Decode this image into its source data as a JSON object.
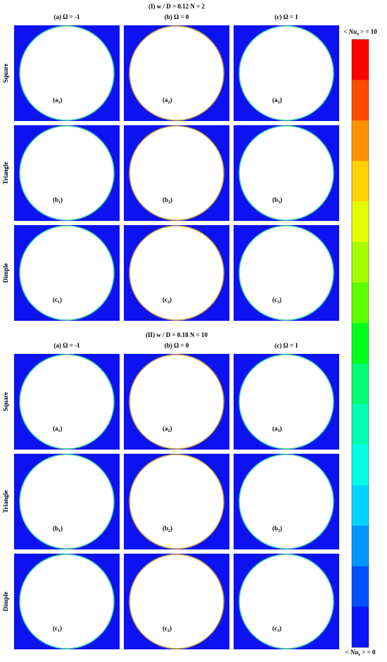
{
  "sections": [
    {
      "title": "(I)  w / D = 0.12    N = 2",
      "columns": [
        "(a) Ω = -1",
        "(b) Ω = 0",
        "(c) Ω = 1"
      ],
      "rows": [
        {
          "label": "Square",
          "panels": [
            {
              "letter": "a",
              "sub": "1"
            },
            {
              "letter": "a",
              "sub": "2"
            },
            {
              "letter": "a",
              "sub": "3"
            }
          ]
        },
        {
          "label": "Triangle",
          "panels": [
            {
              "letter": "b",
              "sub": "1"
            },
            {
              "letter": "b",
              "sub": "2"
            },
            {
              "letter": "b",
              "sub": "3"
            }
          ]
        },
        {
          "label": "Dimple",
          "panels": [
            {
              "letter": "c",
              "sub": "1"
            },
            {
              "letter": "c",
              "sub": "2"
            },
            {
              "letter": "c",
              "sub": "3"
            }
          ]
        }
      ]
    },
    {
      "title": "(II)  w / D = 0.18   N = 10",
      "columns": [
        "(a) Ω = -1",
        "(b) Ω = 0",
        "(c) Ω = 1"
      ],
      "rows": [
        {
          "label": "Square",
          "panels": [
            {
              "letter": "a",
              "sub": "1"
            },
            {
              "letter": "a",
              "sub": "2"
            },
            {
              "letter": "a",
              "sub": "3"
            }
          ]
        },
        {
          "label": "Triangle",
          "panels": [
            {
              "letter": "b",
              "sub": "1"
            },
            {
              "letter": "b",
              "sub": "2"
            },
            {
              "letter": "b",
              "sub": "3"
            }
          ]
        },
        {
          "label": "Dimple",
          "panels": [
            {
              "letter": "c",
              "sub": "1"
            },
            {
              "letter": "c",
              "sub": "2"
            },
            {
              "letter": "c",
              "sub": "3"
            }
          ]
        }
      ]
    }
  ],
  "colorbar": {
    "max_label": {
      "prefix": "< Nu",
      "sub": "z",
      "suffix": " > = 10"
    },
    "min_label": {
      "prefix": "< Nu",
      "sub": "z",
      "suffix": " > = 0"
    },
    "colors": [
      "#ff0000",
      "#ff4a00",
      "#ff9100",
      "#ffd200",
      "#e5ff00",
      "#a6ff00",
      "#5cff00",
      "#00ff1a",
      "#00ff73",
      "#00ffb0",
      "#00ffe6",
      "#00d5ff",
      "#0096ff",
      "#0050ff",
      "#0a14ff"
    ]
  }
}
